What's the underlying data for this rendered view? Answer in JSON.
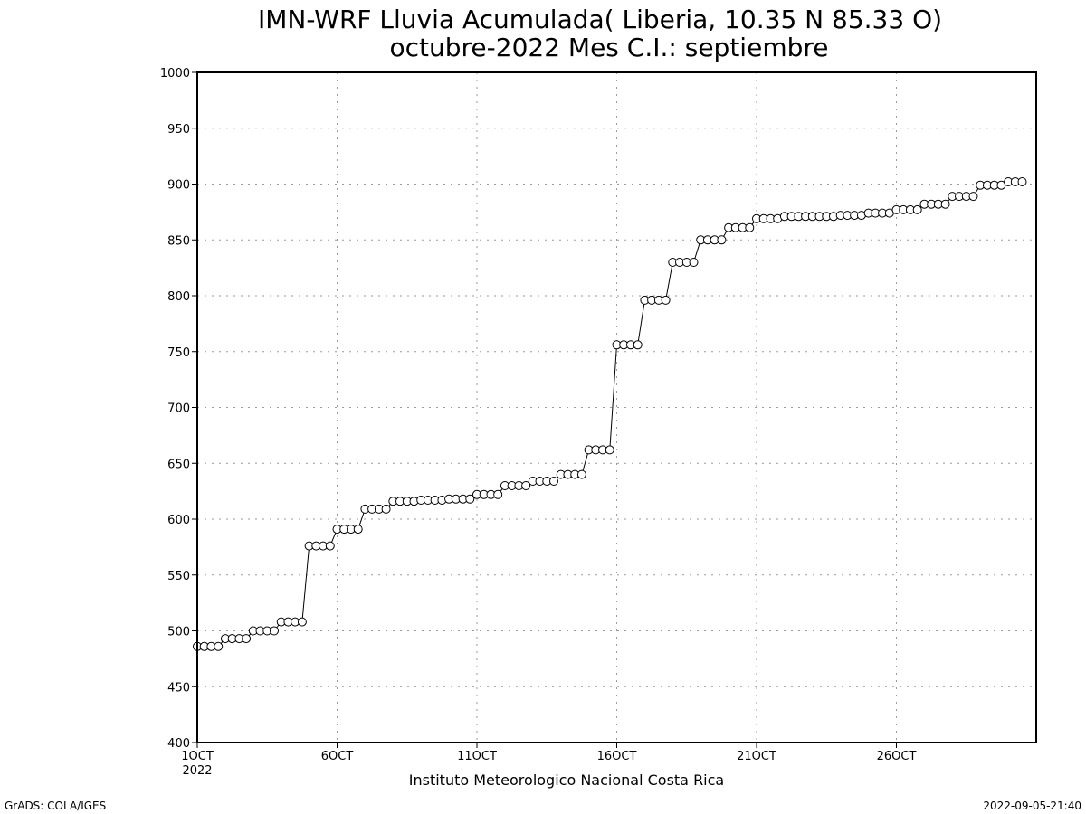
{
  "chart_data": {
    "type": "line",
    "title": "IMN-WRF  Lluvia Acumulada( Liberia, 10.35  N 85.33  O)",
    "subtitle": "octubre-2022 Mes C.I.: septiembre",
    "xlabel": "",
    "ylabel": "",
    "ylim": [
      400,
      1000
    ],
    "y_ticks": [
      400,
      450,
      500,
      550,
      600,
      650,
      700,
      750,
      800,
      850,
      900,
      950,
      1000
    ],
    "x_range_days": [
      1,
      31
    ],
    "x_ticks": [
      {
        "day": 1,
        "label": "1OCT",
        "sublabel": "2022"
      },
      {
        "day": 6,
        "label": "6OCT"
      },
      {
        "day": 11,
        "label": "11OCT"
      },
      {
        "day": 16,
        "label": "16OCT"
      },
      {
        "day": 21,
        "label": "21OCT"
      },
      {
        "day": 26,
        "label": "26OCT"
      }
    ],
    "grid": true,
    "marker": "open-circle",
    "x_step_hours": 6,
    "series": [
      {
        "values": [
          486,
          486,
          486,
          486,
          493,
          493,
          493,
          493,
          500,
          500,
          500,
          500,
          508,
          508,
          508,
          508,
          576,
          576,
          576,
          576,
          591,
          591,
          591,
          591,
          609,
          609,
          609,
          609,
          616,
          616,
          616,
          616,
          617,
          617,
          617,
          617,
          618,
          618,
          618,
          618,
          622,
          622,
          622,
          622,
          630,
          630,
          630,
          630,
          634,
          634,
          634,
          634,
          640,
          640,
          640,
          640,
          662,
          662,
          662,
          662,
          756,
          756,
          756,
          756,
          796,
          796,
          796,
          796,
          830,
          830,
          830,
          830,
          850,
          850,
          850,
          850,
          861,
          861,
          861,
          861,
          869,
          869,
          869,
          869,
          871,
          871,
          871,
          871,
          871,
          871,
          871,
          871,
          872,
          872,
          872,
          872,
          874,
          874,
          874,
          874,
          877,
          877,
          877,
          877,
          882,
          882,
          882,
          882,
          889,
          889,
          889,
          889,
          899,
          899,
          899,
          899,
          902,
          902,
          902
        ]
      }
    ]
  },
  "footer": {
    "institution": "Instituto Meteorologico Nacional Costa Rica",
    "software": "GrADS: COLA/IGES",
    "timestamp": "2022-09-05-21:40"
  }
}
